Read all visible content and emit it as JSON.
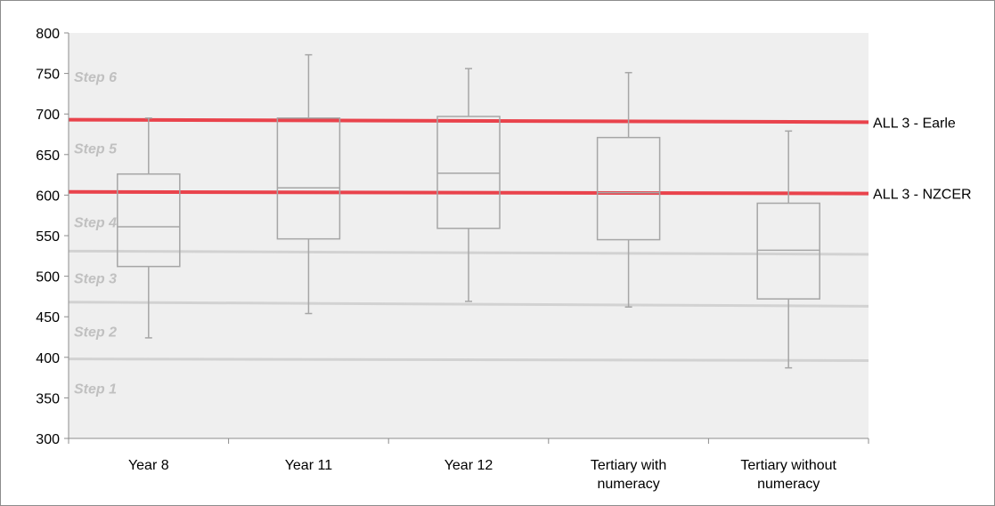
{
  "chart_data": {
    "type": "box",
    "ylim": [
      300,
      800
    ],
    "yticks": [
      300,
      350,
      400,
      450,
      500,
      550,
      600,
      650,
      700,
      750,
      800
    ],
    "categories": [
      {
        "lines": [
          "Year 8"
        ]
      },
      {
        "lines": [
          "Year 11"
        ]
      },
      {
        "lines": [
          "Year 12"
        ]
      },
      {
        "lines": [
          "Tertiary with",
          "numeracy"
        ]
      },
      {
        "lines": [
          "Tertiary without",
          "numeracy"
        ]
      }
    ],
    "boxes": [
      {
        "min": 424,
        "q1": 512,
        "median": 561,
        "q3": 626,
        "max": 695
      },
      {
        "min": 454,
        "q1": 546,
        "median": 609,
        "q3": 695,
        "max": 773
      },
      {
        "min": 469,
        "q1": 559,
        "median": 627,
        "q3": 697,
        "max": 756
      },
      {
        "min": 462,
        "q1": 545,
        "median": 603,
        "q3": 671,
        "max": 751
      },
      {
        "min": 387,
        "q1": 472,
        "median": 532,
        "q3": 590,
        "max": 679
      }
    ],
    "reference_lines": [
      {
        "label": "ALL 3 - Earle",
        "y_start": 693,
        "y_end": 690,
        "color": "#e8303a"
      },
      {
        "label": "ALL 3 - NZCER",
        "y_start": 604,
        "y_end": 602,
        "color": "#e8303a"
      }
    ],
    "step_boundaries": [
      {
        "y_start": 398,
        "y_end": 396
      },
      {
        "y_start": 468,
        "y_end": 463
      },
      {
        "y_start": 531,
        "y_end": 527
      }
    ],
    "step_labels": [
      {
        "text": "Step 1",
        "y": 362
      },
      {
        "text": "Step 2",
        "y": 432
      },
      {
        "text": "Step 3",
        "y": 498
      },
      {
        "text": "Step 4",
        "y": 567
      },
      {
        "text": "Step 5",
        "y": 658
      },
      {
        "text": "Step 6",
        "y": 746
      }
    ],
    "colors": {
      "plot_background": "#efefef",
      "box_stroke": "#a6a6a6",
      "step_line": "#d2d2d2",
      "axis": "#8c8c8c"
    }
  }
}
